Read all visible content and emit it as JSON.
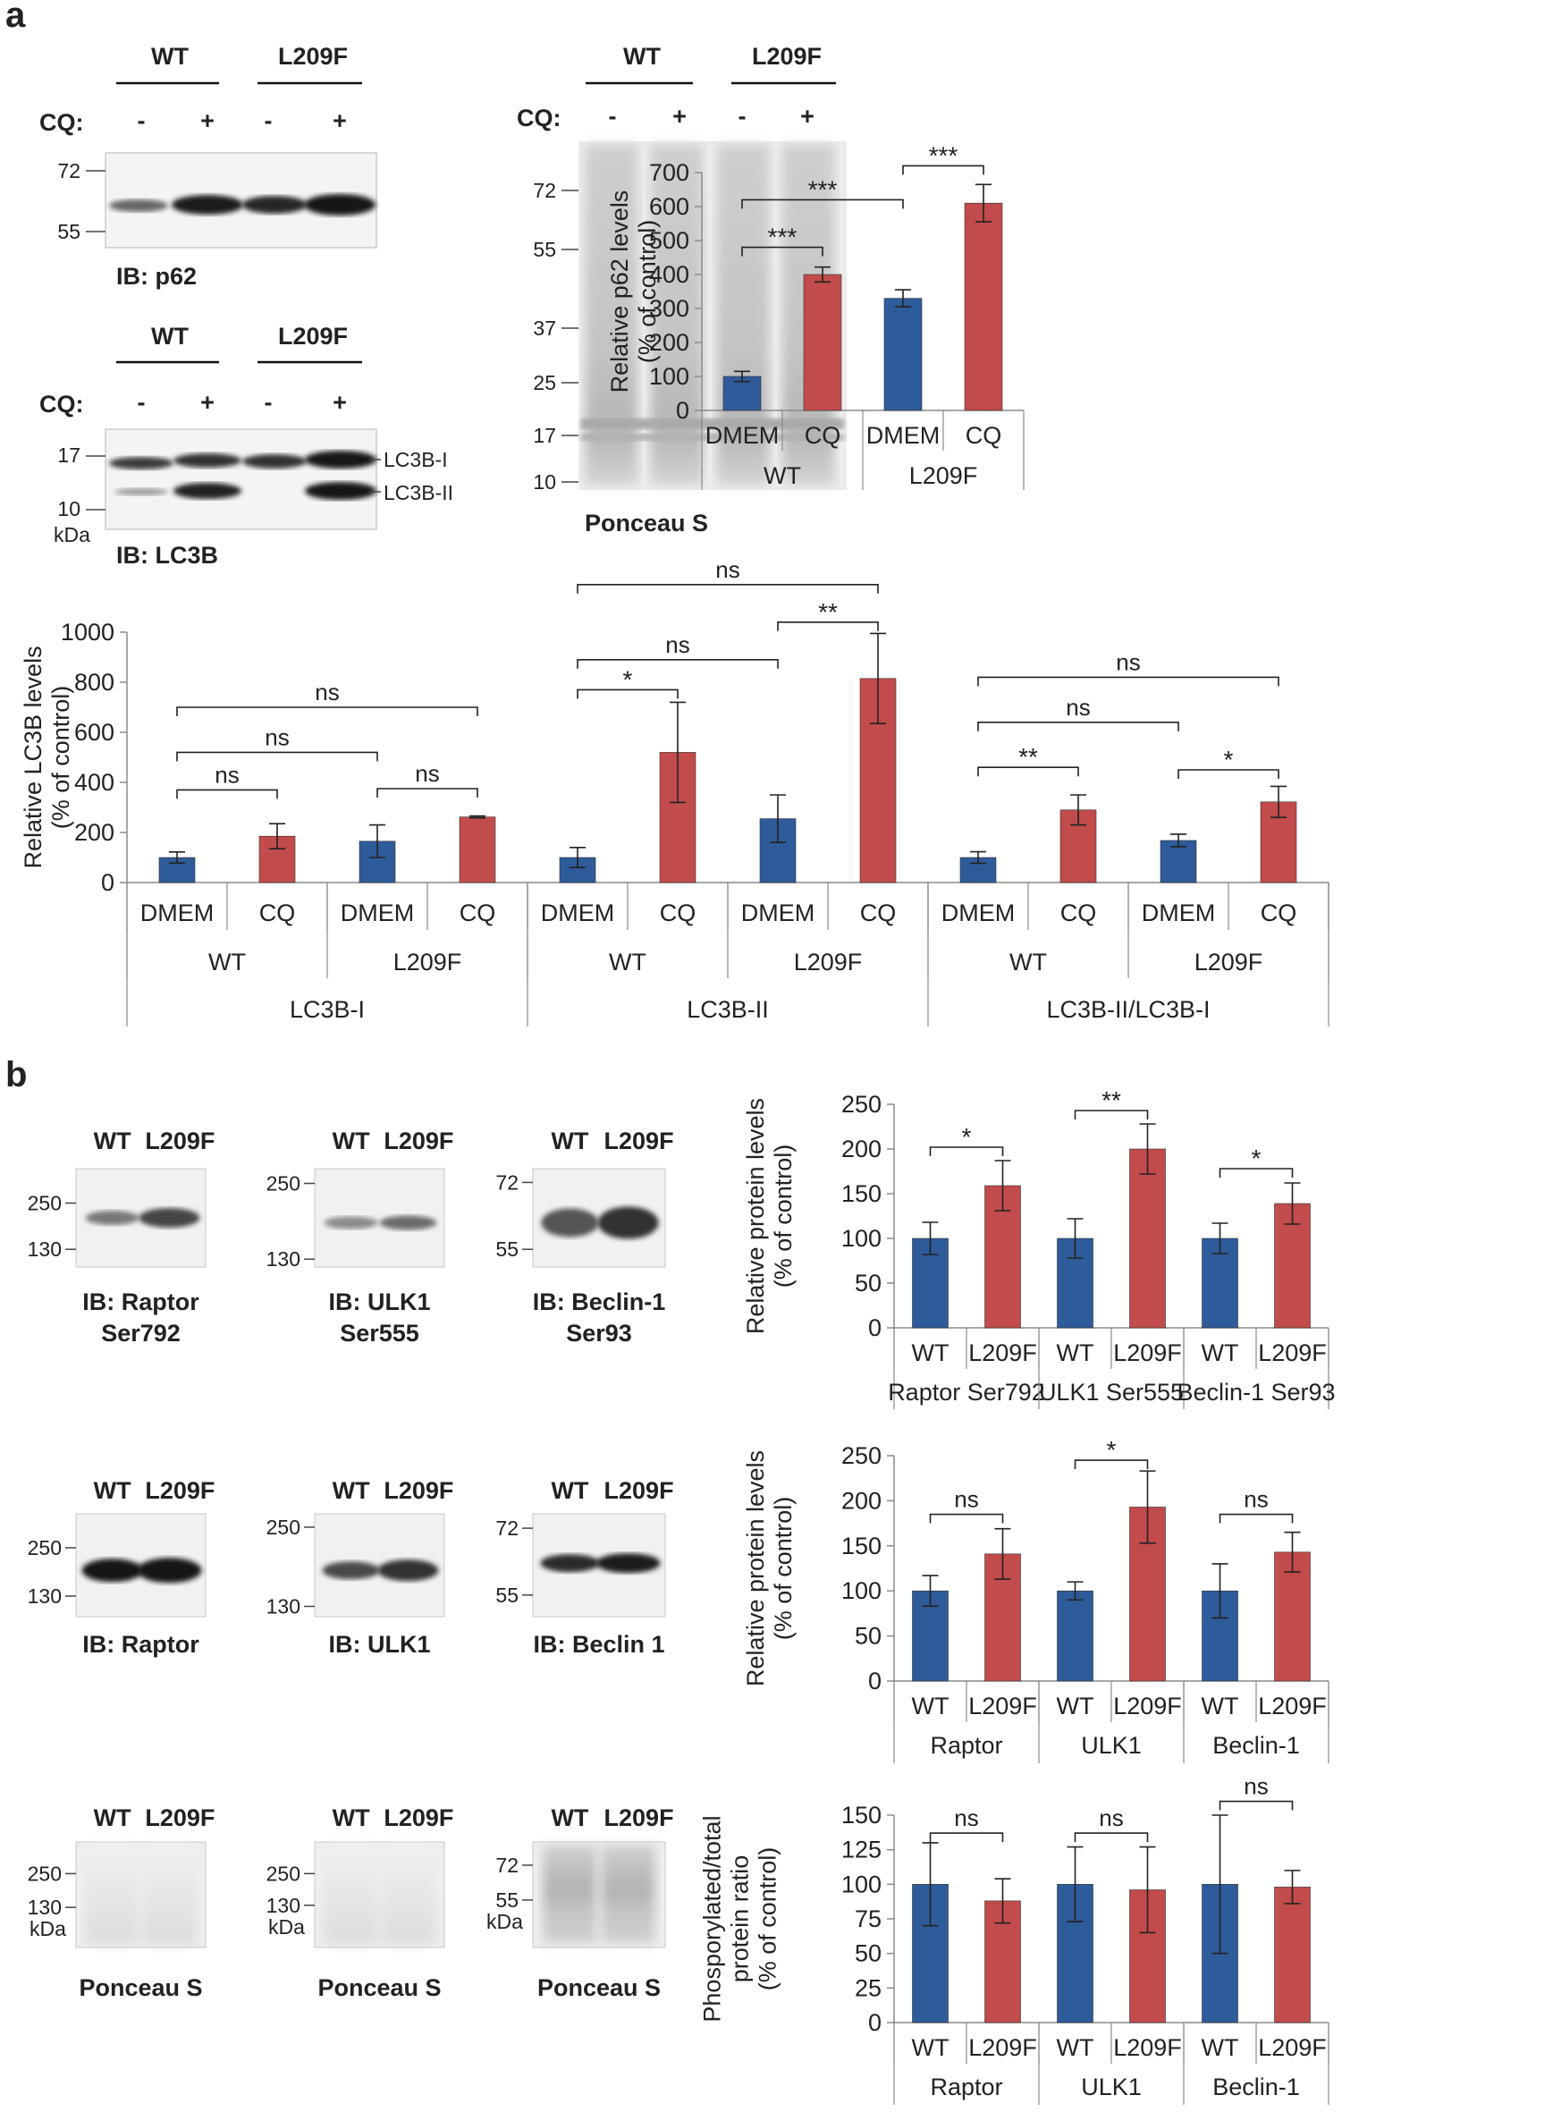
{
  "panel_labels": {
    "a": "a",
    "b": "b"
  },
  "colors": {
    "blue": "#2e5b9a",
    "red": "#c24b4b",
    "axis": "#8a8a8a",
    "text": "#222222"
  },
  "blots_a": {
    "p62": {
      "groups": [
        "WT",
        "L209F"
      ],
      "cq_label": "CQ:",
      "cq_marks": [
        "-",
        "+",
        "-",
        "+"
      ],
      "mw": [
        "72",
        "55"
      ],
      "ib": "IB: p62"
    },
    "lc3b": {
      "groups": [
        "WT",
        "L209F"
      ],
      "cq_label": "CQ:",
      "cq_marks": [
        "-",
        "+",
        "-",
        "+"
      ],
      "mw": [
        "17",
        "10"
      ],
      "kda": "kDa",
      "band_labels": [
        "LC3B-I",
        "LC3B-II"
      ],
      "ib": "IB: LC3B"
    },
    "ponceau": {
      "groups": [
        "WT",
        "L209F"
      ],
      "cq_label": "CQ:",
      "cq_marks": [
        "-",
        "+",
        "-",
        "+"
      ],
      "mw": [
        "72",
        "55",
        "37",
        "25",
        "17",
        "10"
      ],
      "label": "Ponceau S"
    }
  },
  "blots_b": {
    "row1": [
      {
        "lanes": [
          "WT",
          "L209F"
        ],
        "mw": [
          "250",
          "130"
        ],
        "ib": [
          "IB: Raptor",
          "Ser792"
        ]
      },
      {
        "lanes": [
          "WT",
          "L209F"
        ],
        "mw": [
          "250",
          "130"
        ],
        "ib": [
          "IB: ULK1",
          "Ser555"
        ]
      },
      {
        "lanes": [
          "WT",
          "L209F"
        ],
        "mw": [
          "72",
          "55"
        ],
        "ib": [
          "IB: Beclin-1",
          "Ser93"
        ]
      }
    ],
    "row2": [
      {
        "lanes": [
          "WT",
          "L209F"
        ],
        "mw": [
          "250",
          "130"
        ],
        "ib": [
          "IB: Raptor"
        ]
      },
      {
        "lanes": [
          "WT",
          "L209F"
        ],
        "mw": [
          "250",
          "130"
        ],
        "ib": [
          "IB: ULK1"
        ]
      },
      {
        "lanes": [
          "WT",
          "L209F"
        ],
        "mw": [
          "72",
          "55"
        ],
        "ib": [
          "IB: Beclin 1"
        ]
      }
    ],
    "row3": [
      {
        "lanes": [
          "WT",
          "L209F"
        ],
        "mw": [
          "250",
          "130"
        ],
        "kda": "kDa",
        "ib": [
          "Ponceau S"
        ]
      },
      {
        "lanes": [
          "WT",
          "L209F"
        ],
        "mw": [
          "250",
          "130"
        ],
        "kda": "kDa",
        "ib": [
          "Ponceau S"
        ]
      },
      {
        "lanes": [
          "WT",
          "L209F"
        ],
        "mw": [
          "72",
          "55"
        ],
        "kda": "kDa",
        "ib": [
          "Ponceau S"
        ]
      }
    ]
  },
  "chart_data": [
    {
      "type": "bar",
      "ylabel": [
        "Relative p62 levels",
        "(% of control)"
      ],
      "ylim": [
        0,
        700
      ],
      "yticks": [
        0,
        100,
        200,
        300,
        400,
        500,
        600,
        700
      ],
      "bars": [
        {
          "label": "DMEM",
          "value": 100,
          "err": 15,
          "color": "blue"
        },
        {
          "label": "CQ",
          "value": 400,
          "err": 22,
          "color": "red"
        },
        {
          "label": "DMEM",
          "value": 330,
          "err": 25,
          "color": "blue"
        },
        {
          "label": "CQ",
          "value": 610,
          "err": 55,
          "color": "red"
        }
      ],
      "groups": [
        {
          "label": "WT",
          "bars": [
            0,
            1
          ]
        },
        {
          "label": "L209F",
          "bars": [
            2,
            3
          ]
        }
      ],
      "supergroups": [],
      "sig": [
        {
          "from": 0,
          "to": 1,
          "y": 480,
          "text": "***"
        },
        {
          "from": 0,
          "to": 2,
          "y": 620,
          "text": "***"
        },
        {
          "from": 2,
          "to": 3,
          "y": 720,
          "text": "***"
        }
      ]
    },
    {
      "type": "bar",
      "ylabel": [
        "Relative LC3B levels",
        "(% of control)"
      ],
      "ylim": [
        0,
        1000
      ],
      "yticks": [
        0,
        200,
        400,
        600,
        800,
        1000
      ],
      "bars": [
        {
          "label": "DMEM",
          "value": 100,
          "err": 22,
          "color": "blue"
        },
        {
          "label": "CQ",
          "value": 185,
          "err": 50,
          "color": "red"
        },
        {
          "label": "DMEM",
          "value": 165,
          "err": 65,
          "color": "blue"
        },
        {
          "label": "CQ",
          "value": 262,
          "err": 4,
          "color": "red"
        },
        {
          "label": "DMEM",
          "value": 100,
          "err": 40,
          "color": "blue"
        },
        {
          "label": "CQ",
          "value": 520,
          "err": 200,
          "color": "red"
        },
        {
          "label": "DMEM",
          "value": 255,
          "err": 95,
          "color": "blue"
        },
        {
          "label": "CQ",
          "value": 815,
          "err": 180,
          "color": "red"
        },
        {
          "label": "DMEM",
          "value": 100,
          "err": 23,
          "color": "blue"
        },
        {
          "label": "CQ",
          "value": 290,
          "err": 60,
          "color": "red"
        },
        {
          "label": "DMEM",
          "value": 168,
          "err": 25,
          "color": "blue"
        },
        {
          "label": "CQ",
          "value": 322,
          "err": 62,
          "color": "red"
        }
      ],
      "groups": [
        {
          "label": "WT",
          "bars": [
            0,
            1
          ]
        },
        {
          "label": "L209F",
          "bars": [
            2,
            3
          ]
        },
        {
          "label": "WT",
          "bars": [
            4,
            5
          ]
        },
        {
          "label": "L209F",
          "bars": [
            6,
            7
          ]
        },
        {
          "label": "WT",
          "bars": [
            8,
            9
          ]
        },
        {
          "label": "L209F",
          "bars": [
            10,
            11
          ]
        }
      ],
      "supergroups": [
        {
          "label": "LC3B-I",
          "groups": [
            0,
            1
          ]
        },
        {
          "label": "LC3B-II",
          "groups": [
            2,
            3
          ]
        },
        {
          "label": "LC3B-II/LC3B-I",
          "groups": [
            4,
            5
          ]
        }
      ],
      "sig": [
        {
          "from": 0,
          "to": 1,
          "y": 370,
          "text": "ns"
        },
        {
          "from": 0,
          "to": 2,
          "y": 520,
          "text": "ns"
        },
        {
          "from": 0,
          "to": 3,
          "y": 700,
          "text": "ns"
        },
        {
          "from": 2,
          "to": 3,
          "y": 375,
          "text": "ns"
        },
        {
          "from": 4,
          "to": 5,
          "y": 770,
          "text": "*"
        },
        {
          "from": 4,
          "to": 6,
          "y": 890,
          "text": "ns"
        },
        {
          "from": 4,
          "to": 7,
          "y": 1190,
          "text": "ns"
        },
        {
          "from": 6,
          "to": 7,
          "y": 1040,
          "text": "**"
        },
        {
          "from": 8,
          "to": 9,
          "y": 460,
          "text": "**"
        },
        {
          "from": 8,
          "to": 10,
          "y": 640,
          "text": "ns"
        },
        {
          "from": 8,
          "to": 11,
          "y": 820,
          "text": "ns"
        },
        {
          "from": 10,
          "to": 11,
          "y": 450,
          "text": "*"
        }
      ]
    },
    {
      "type": "bar",
      "ylabel": [
        "Relative protein levels",
        "(% of control)"
      ],
      "ylim": [
        0,
        250
      ],
      "yticks": [
        0,
        50,
        100,
        150,
        200,
        250
      ],
      "bars": [
        {
          "label": "WT",
          "value": 100,
          "err": 18,
          "color": "blue"
        },
        {
          "label": "L209F",
          "value": 159,
          "err": 28,
          "color": "red"
        },
        {
          "label": "WT",
          "value": 100,
          "err": 22,
          "color": "blue"
        },
        {
          "label": "L209F",
          "value": 200,
          "err": 28,
          "color": "red"
        },
        {
          "label": "WT",
          "value": 100,
          "err": 17,
          "color": "blue"
        },
        {
          "label": "L209F",
          "value": 139,
          "err": 23,
          "color": "red"
        }
      ],
      "groups": [
        {
          "label": "Raptor Ser792",
          "bars": [
            0,
            1
          ]
        },
        {
          "label": "ULK1  Ser555",
          "bars": [
            2,
            3
          ]
        },
        {
          "label": "Beclin-1  Ser93",
          "bars": [
            4,
            5
          ]
        }
      ],
      "supergroups": [],
      "sig": [
        {
          "from": 0,
          "to": 1,
          "y": 202,
          "text": "*"
        },
        {
          "from": 2,
          "to": 3,
          "y": 243,
          "text": "**"
        },
        {
          "from": 4,
          "to": 5,
          "y": 178,
          "text": "*"
        }
      ]
    },
    {
      "type": "bar",
      "ylabel": [
        "Relative protein levels",
        "(% of control)"
      ],
      "ylim": [
        0,
        250
      ],
      "yticks": [
        0,
        50,
        100,
        150,
        200,
        250
      ],
      "bars": [
        {
          "label": "WT",
          "value": 100,
          "err": 17,
          "color": "blue"
        },
        {
          "label": "L209F",
          "value": 141,
          "err": 28,
          "color": "red"
        },
        {
          "label": "WT",
          "value": 100,
          "err": 10,
          "color": "blue"
        },
        {
          "label": "L209F",
          "value": 193,
          "err": 40,
          "color": "red"
        },
        {
          "label": "WT",
          "value": 100,
          "err": 30,
          "color": "blue"
        },
        {
          "label": "L209F",
          "value": 143,
          "err": 22,
          "color": "red"
        }
      ],
      "groups": [
        {
          "label": "Raptor",
          "bars": [
            0,
            1
          ]
        },
        {
          "label": "ULK1",
          "bars": [
            2,
            3
          ]
        },
        {
          "label": "Beclin-1",
          "bars": [
            4,
            5
          ]
        }
      ],
      "supergroups": [],
      "sig": [
        {
          "from": 0,
          "to": 1,
          "y": 185,
          "text": "ns"
        },
        {
          "from": 2,
          "to": 3,
          "y": 245,
          "text": "*"
        },
        {
          "from": 4,
          "to": 5,
          "y": 185,
          "text": "ns"
        }
      ]
    },
    {
      "type": "bar",
      "ylabel": [
        "Phosporylated/total",
        "protein ratio",
        "(% of control)"
      ],
      "ylim": [
        0,
        150
      ],
      "yticks": [
        0,
        25,
        50,
        75,
        100,
        125,
        150
      ],
      "bars": [
        {
          "label": "WT",
          "value": 100,
          "err": 30,
          "color": "blue"
        },
        {
          "label": "L209F",
          "value": 88,
          "err": 16,
          "color": "red"
        },
        {
          "label": "WT",
          "value": 100,
          "err": 27,
          "color": "blue"
        },
        {
          "label": "L209F",
          "value": 96,
          "err": 31,
          "color": "red"
        },
        {
          "label": "WT",
          "value": 100,
          "err": 50,
          "color": "blue"
        },
        {
          "label": "L209F",
          "value": 98,
          "err": 12,
          "color": "red"
        }
      ],
      "groups": [
        {
          "label": "Raptor",
          "bars": [
            0,
            1
          ]
        },
        {
          "label": "ULK1",
          "bars": [
            2,
            3
          ]
        },
        {
          "label": "Beclin-1",
          "bars": [
            4,
            5
          ]
        }
      ],
      "supergroups": [],
      "sig": [
        {
          "from": 0,
          "to": 1,
          "y": 137,
          "text": "ns"
        },
        {
          "from": 2,
          "to": 3,
          "y": 137,
          "text": "ns"
        },
        {
          "from": 4,
          "to": 5,
          "y": 160,
          "text": "ns"
        }
      ]
    }
  ]
}
